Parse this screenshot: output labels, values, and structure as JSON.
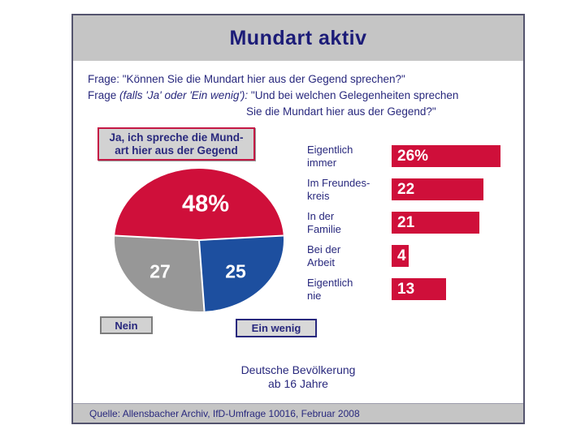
{
  "slide": {
    "title": "Mundart aktiv",
    "questions": {
      "q1": "Frage: \"Können Sie die Mundart hier aus der Gegend sprechen?\"",
      "q2_prefix": "Frage ",
      "q2_italic": "(falls 'Ja' oder 'Ein wenig'):",
      "q2_rest": " \"Und bei welchen Gelegenheiten sprechen",
      "q3": "Sie die Mundart hier aus der Gegend?\""
    },
    "ja_box": {
      "line1": "Ja, ich spreche die Mund-",
      "line2": "art hier aus der Gegend"
    },
    "nein_label": "Nein",
    "ein_wenig_label": "Ein wenig",
    "population_note": {
      "line1": "Deutsche Bevölkerung",
      "line2": "ab 16 Jahre"
    },
    "source": "Quelle: Allensbacher Archiv, IfD-Umfrage 10016, Februar 2008"
  },
  "colors": {
    "accent_red": "#cf0f3a",
    "pie_blue": "#1d4f9f",
    "pie_gray": "#979797",
    "navy_text": "#28287d",
    "title_navy": "#1c1c78",
    "band_gray": "#c5c5c5",
    "frame_border": "#54546e"
  },
  "chart_data": [
    {
      "type": "pie",
      "title": "Können Sie die Mundart hier aus der Gegend sprechen?",
      "start_angle_deg": 176.4,
      "direction": "clockwise",
      "slices": [
        {
          "label": "Ja, ich spreche die Mundart hier aus der Gegend",
          "value": 48,
          "display": "48%",
          "color": "#cf0f3a"
        },
        {
          "label": "Ein wenig",
          "value": 25,
          "display": "25",
          "color": "#1d4f9f"
        },
        {
          "label": "Nein",
          "value": 27,
          "display": "27",
          "color": "#979797"
        }
      ]
    },
    {
      "type": "bar",
      "orientation": "horizontal",
      "title": "Und bei welchen Gelegenheiten sprechen Sie die Mundart hier aus der Gegend?",
      "categories": [
        "Eigentlich\nimmer",
        "Im Freundes-\nkreis",
        "In der\nFamilie",
        "Bei der\nArbeit",
        "Eigentlich\nnie"
      ],
      "values": [
        26,
        22,
        21,
        4,
        13
      ],
      "value_labels": [
        "26%",
        "22",
        "21",
        "4",
        "13"
      ],
      "xmax": 26,
      "bar_color": "#cf0f3a",
      "grid": false,
      "legend": false
    }
  ]
}
